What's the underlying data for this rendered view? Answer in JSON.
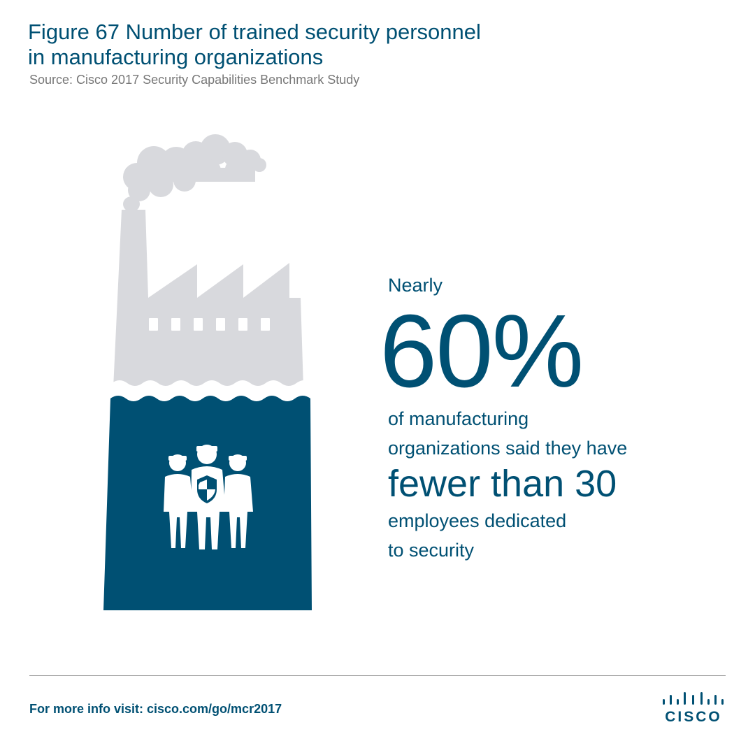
{
  "title": {
    "line1": "Figure 67  Number of trained security personnel",
    "line2": "in manufacturing organizations"
  },
  "source": "Source: Cisco 2017 Security Capabilities Benchmark Study",
  "stat": {
    "lead": "Nearly",
    "number": "60%",
    "body_line1": "of manufacturing",
    "body_line2": "organizations said they have",
    "emphasis": "fewer than 30",
    "tail_line1": "employees dedicated",
    "tail_line2": "to security"
  },
  "footer": {
    "prefix": "For more info visit: ",
    "link": "cisco.com/go/mcr2017"
  },
  "logo": {
    "word": "CISCO"
  },
  "colors": {
    "brand_blue": "#005073",
    "factory_gray": "#d8d9dd",
    "rule_gray": "#9a9a9a"
  },
  "icons": [
    "factory-illustration",
    "smoke-cloud-icon",
    "security-team-icon",
    "shield-icon",
    "cisco-logo-icon"
  ]
}
